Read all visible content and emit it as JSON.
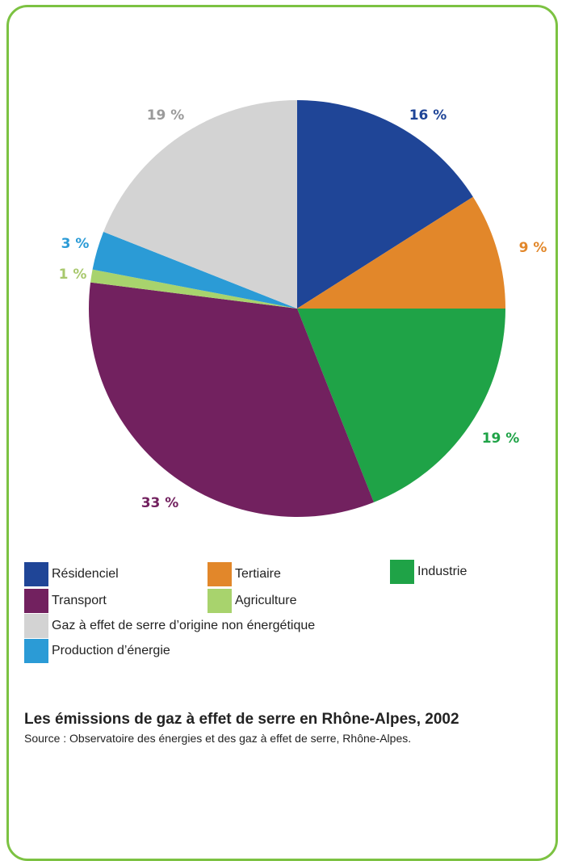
{
  "chart_data": {
    "type": "pie",
    "title": "Les émissions de gaz à effet de serre en Rhône-Alpes, 2002",
    "source": "Source : Observatoire des énergies et des gaz à effet de serre, Rhône-Alpes.",
    "legend_position": "bottom",
    "slices": [
      {
        "name": "Résidenciel",
        "value": 16,
        "label": "16 %",
        "color": "#1f4597"
      },
      {
        "name": "Tertiaire",
        "value": 9,
        "label": "9 %",
        "color": "#e2872a"
      },
      {
        "name": "Industrie",
        "value": 19,
        "label": "19 %",
        "color": "#1fa347"
      },
      {
        "name": "Transport",
        "value": 33,
        "label": "33 %",
        "color": "#72215f"
      },
      {
        "name": "Agriculture",
        "value": 1,
        "label": "1 %",
        "color": "#a8d36d"
      },
      {
        "name": "Production d’énergie",
        "value": 3,
        "label": "3 %",
        "color": "#2b9bd6"
      },
      {
        "name": "Gaz à effet de serre d’origine non énergétique",
        "value": 19,
        "label": "19 %",
        "color": "#d3d3d3"
      }
    ]
  },
  "legend": [
    {
      "label": " Résidenciel",
      "color": "#1f4597"
    },
    {
      "label": "Tertiaire",
      "color": "#e2872a"
    },
    {
      "label": "Industrie",
      "color": "#1fa347"
    },
    {
      "label": "Transport",
      "color": "#72215f"
    },
    {
      "label": "Agriculture",
      "color": "#a8d36d"
    },
    {
      "label": "Gaz à effet de serre d’origine non énergétique",
      "color": "#d3d3d3"
    },
    {
      "label": "Production d’énergie",
      "color": "#2b9bd6"
    }
  ],
  "frame_color": "#7cc242"
}
